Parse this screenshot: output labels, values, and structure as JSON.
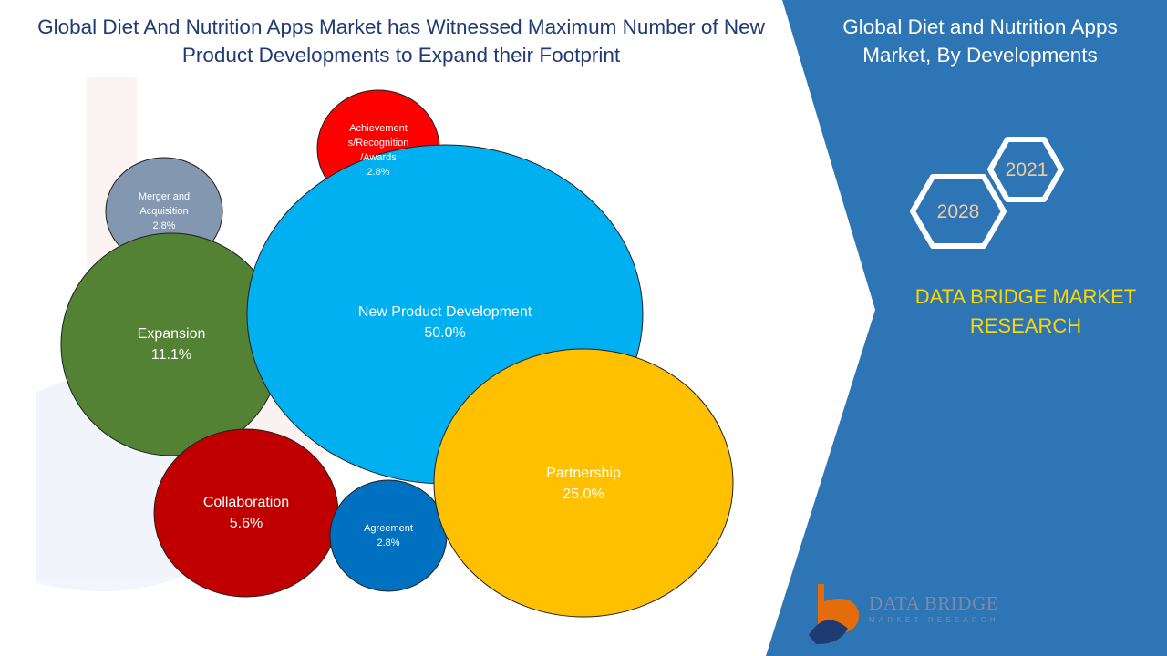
{
  "title": "Global Diet And Nutrition Apps Market has Witnessed Maximum Number of New Product Developments to Expand their Footprint",
  "side_panel": {
    "title": "Global Diet and Nutrition Apps Market, By Developments",
    "years": [
      "2021",
      "2028"
    ],
    "brand": "DATA BRIDGE MARKET RESEARCH"
  },
  "logo": {
    "line1": "DATA BRIDGE",
    "line2": "MARKET RESEARCH"
  },
  "colors": {
    "panel": "#2e75b6",
    "title": "#1f3b73",
    "brand_text": "#ffd700"
  },
  "chart_data": {
    "type": "bubble",
    "unit": "%",
    "series": [
      {
        "name": "New Product Development",
        "label_lines": [
          "New Product Development"
        ],
        "value": 50.0,
        "display": "50.0%",
        "color": "#00b0f0",
        "text_color": "#ffffff"
      },
      {
        "name": "Partnership",
        "label_lines": [
          "Partnership"
        ],
        "value": 25.0,
        "display": "25.0%",
        "color": "#ffc000",
        "text_color": "#ffffff"
      },
      {
        "name": "Expansion",
        "label_lines": [
          "Expansion"
        ],
        "value": 11.1,
        "display": "11.1%",
        "color": "#548235",
        "text_color": "#ffffff"
      },
      {
        "name": "Collaboration",
        "label_lines": [
          "Collaboration"
        ],
        "value": 5.6,
        "display": "5.6%",
        "color": "#c00000",
        "text_color": "#ffffff"
      },
      {
        "name": "Merger and Acquisition",
        "label_lines": [
          "Merger and",
          "Acquisition"
        ],
        "value": 2.8,
        "display": "2.8%",
        "color": "#8497b0",
        "text_color": "#ffffff"
      },
      {
        "name": "Achievements/Recognition/Awards",
        "label_lines": [
          "Achievement",
          "s/Recognition",
          "/Awards"
        ],
        "value": 2.8,
        "display": "2.8%",
        "color": "#ff0000",
        "text_color": "#ffffff"
      },
      {
        "name": "Agreement",
        "label_lines": [
          "Agreement"
        ],
        "value": 2.8,
        "display": "2.8%",
        "color": "#0070c0",
        "text_color": "#ffffff"
      }
    ]
  }
}
